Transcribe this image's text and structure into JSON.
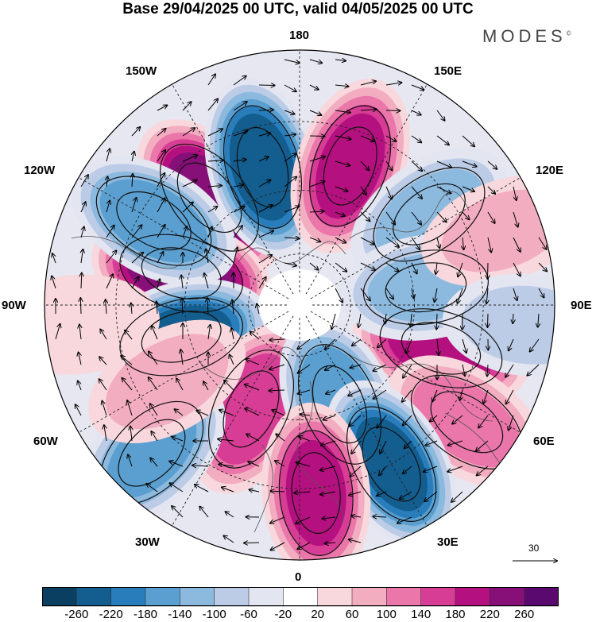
{
  "title": "Base 29/04/2025 00 UTC, valid 04/05/2025 00 UTC",
  "brand": "MODES",
  "brand_mark": "©",
  "longitude_labels": {
    "top": "180",
    "bottom": "0",
    "left": "90W",
    "right": "90E",
    "w150": "150W",
    "w120": "120W",
    "w60": "60W",
    "w30": "30W",
    "e150": "150E",
    "e120": "120E",
    "e60": "60E",
    "e30": "30E"
  },
  "vector_reference": {
    "label": "30",
    "value": 30
  },
  "colorbar": {
    "tick_labels": [
      "-260",
      "-220",
      "-180",
      "-140",
      "-100",
      "-60",
      "-20",
      "20",
      "60",
      "100",
      "140",
      "180",
      "220",
      "260"
    ],
    "colors": [
      "#0b3f62",
      "#135d8f",
      "#2a7dbb",
      "#5a9fd0",
      "#8cb9de",
      "#bccce6",
      "#e3e5f1",
      "#ffffff",
      "#f8d8dd",
      "#f3adc1",
      "#ea76aa",
      "#d73d94",
      "#b5107f",
      "#860f78",
      "#5a0a6e"
    ]
  },
  "anomaly_centers": [
    {
      "lon": -140,
      "lat_frac": 0.55,
      "value": 240
    },
    {
      "lon": -165,
      "lat_frac": 0.56,
      "value": -250
    },
    {
      "lon": 160,
      "lat_frac": 0.58,
      "value": 200
    },
    {
      "lon": 125,
      "lat_frac": 0.62,
      "value": -120
    },
    {
      "lon": -105,
      "lat_frac": 0.48,
      "value": 260
    },
    {
      "lon": -120,
      "lat_frac": 0.66,
      "value": -170
    },
    {
      "lon": -75,
      "lat_frac": 0.48,
      "value": -230
    },
    {
      "lon": 73,
      "lat_frac": 0.58,
      "value": 200
    },
    {
      "lon": 98,
      "lat_frac": 0.5,
      "value": -110
    },
    {
      "lon": 55,
      "lat_frac": 0.8,
      "value": 120
    },
    {
      "lon": -25,
      "lat_frac": 0.45,
      "value": 170
    },
    {
      "lon": 22,
      "lat_frac": 0.42,
      "value": -180
    },
    {
      "lon": 30,
      "lat_frac": 0.72,
      "value": -230
    },
    {
      "lon": 5,
      "lat_frac": 0.74,
      "value": 190
    },
    {
      "lon": -45,
      "lat_frac": 0.82,
      "value": -150
    },
    {
      "lon": -60,
      "lat_frac": 0.6,
      "value": 80
    },
    {
      "lon": 110,
      "lat_frac": 0.85,
      "value": 70
    },
    {
      "lon": -85,
      "lat_frac": 0.88,
      "value": 60
    },
    {
      "lon": 85,
      "lat_frac": 0.9,
      "value": -80
    }
  ]
}
